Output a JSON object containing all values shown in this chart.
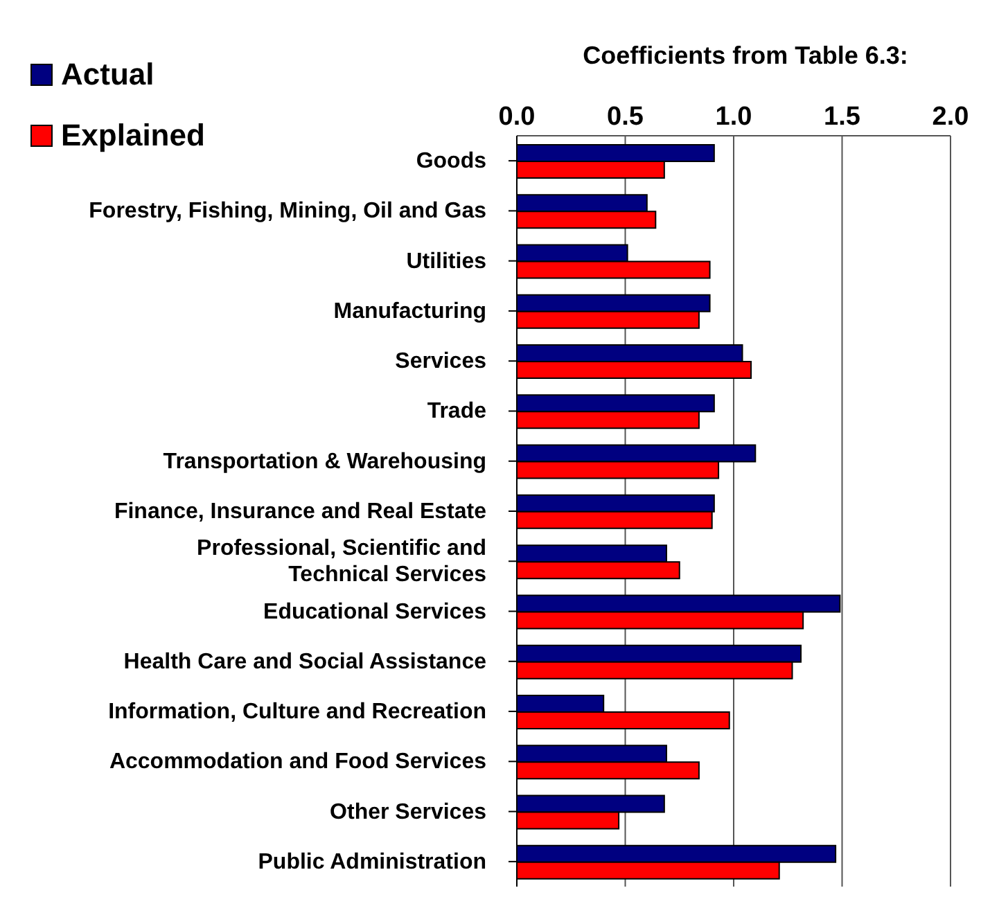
{
  "chart_data": {
    "type": "bar",
    "orientation": "horizontal",
    "title": "Coefficients from Table 6.3:",
    "categories": [
      "Goods",
      "Forestry, Fishing, Mining, Oil and Gas",
      "Utilities",
      "Manufacturing",
      "Services",
      "Trade",
      "Transportation & Warehousing",
      "Finance, Insurance and Real Estate",
      "Professional, Scientific and Technical Services",
      "Educational Services",
      "Health Care and Social Assistance",
      "Information, Culture and Recreation",
      "Accommodation and Food Services",
      "Other Services",
      "Public Administration"
    ],
    "series": [
      {
        "name": "Actual",
        "color": "#000080",
        "values": [
          0.91,
          0.6,
          0.51,
          0.89,
          1.04,
          0.91,
          1.1,
          0.91,
          0.69,
          1.49,
          1.31,
          0.4,
          0.69,
          0.68,
          1.47
        ]
      },
      {
        "name": "Explained",
        "color": "#ff0000",
        "values": [
          0.68,
          0.64,
          0.89,
          0.84,
          1.08,
          0.84,
          0.93,
          0.9,
          0.75,
          1.32,
          1.27,
          0.98,
          0.84,
          0.47,
          1.21
        ]
      }
    ],
    "xlim": [
      0,
      2
    ],
    "xticks": [
      {
        "value": 0,
        "label": "0.0"
      },
      {
        "value": 0.5,
        "label": "0.5"
      },
      {
        "value": 1,
        "label": "1.0"
      },
      {
        "value": 1.5,
        "label": "1.5"
      },
      {
        "value": 2,
        "label": "2.0"
      }
    ],
    "grid": "x",
    "legend": "top left"
  }
}
